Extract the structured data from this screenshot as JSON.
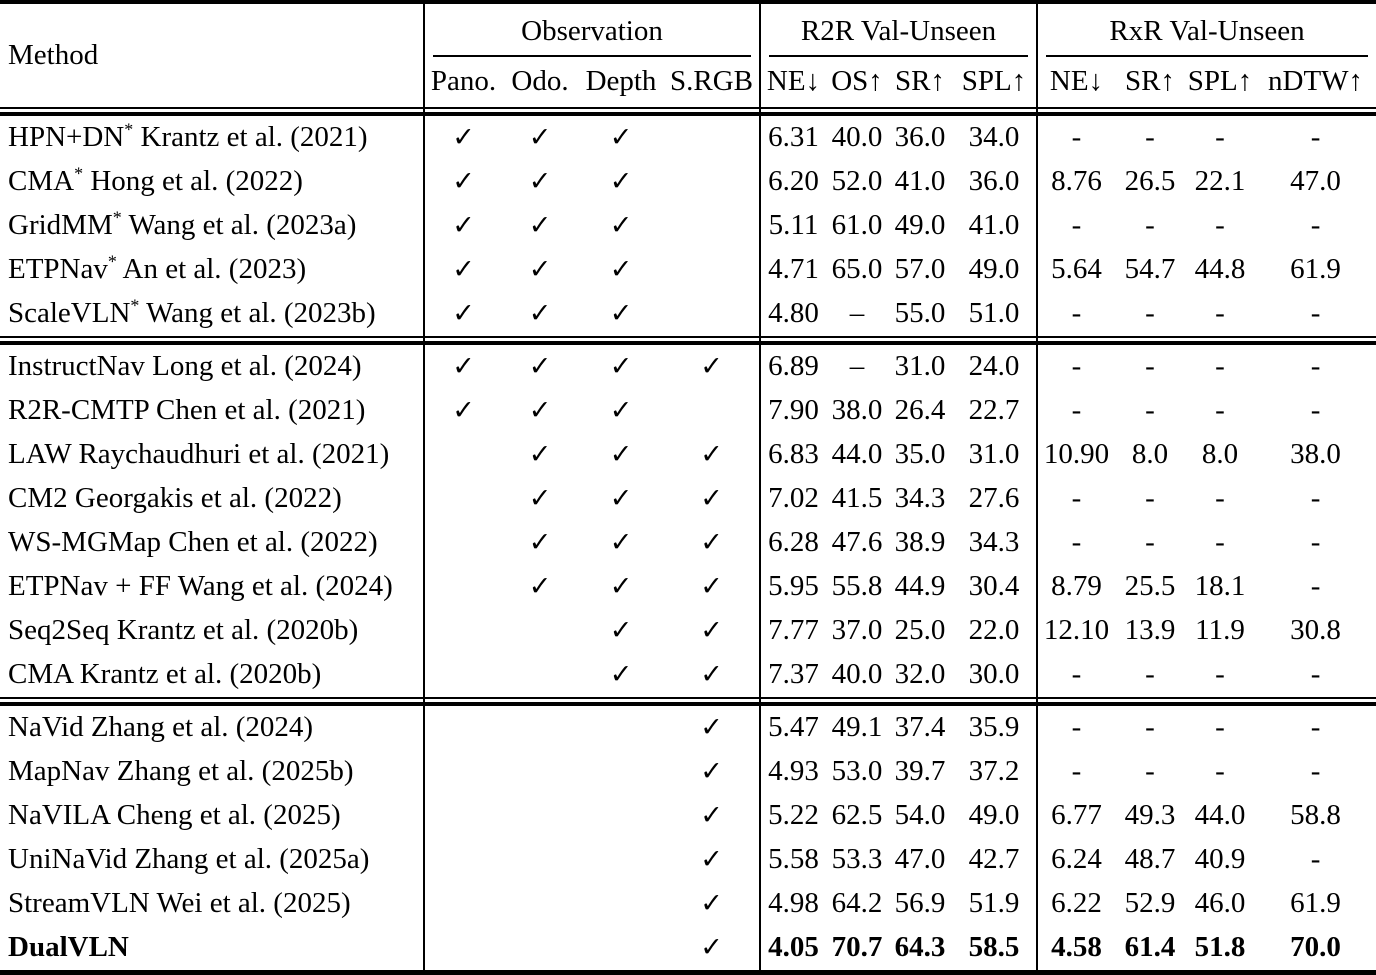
{
  "table": {
    "method_header": "Method",
    "star_glyph": "*",
    "check_glyph": "✓",
    "groups": [
      {
        "label": "Observation",
        "cols": [
          "Pano.",
          "Odo.",
          "Depth",
          "S.RGB"
        ]
      },
      {
        "label": "R2R Val-Unseen",
        "cols": [
          "NE↓",
          "OS↑",
          "SR↑",
          "SPL↑"
        ]
      },
      {
        "label": "RxR Val-Unseen",
        "cols": [
          "NE↓",
          "SR↑",
          "SPL↑",
          "nDTW↑"
        ]
      }
    ],
    "row_groups": [
      {
        "rows": [
          {
            "name": "HPN+DN",
            "star": true,
            "cite": "Krantz et al. (2021)",
            "obs": [
              1,
              1,
              1,
              0
            ],
            "r2r": [
              "6.31",
              "40.0",
              "36.0",
              "34.0"
            ],
            "rxr": [
              "-",
              "-",
              "-",
              "-"
            ],
            "bold": false
          },
          {
            "name": "CMA",
            "star": true,
            "cite": "Hong et al. (2022)",
            "obs": [
              1,
              1,
              1,
              0
            ],
            "r2r": [
              "6.20",
              "52.0",
              "41.0",
              "36.0"
            ],
            "rxr": [
              "8.76",
              "26.5",
              "22.1",
              "47.0"
            ],
            "bold": false
          },
          {
            "name": "GridMM",
            "star": true,
            "cite": "Wang et al. (2023a)",
            "obs": [
              1,
              1,
              1,
              0
            ],
            "r2r": [
              "5.11",
              "61.0",
              "49.0",
              "41.0"
            ],
            "rxr": [
              "-",
              "-",
              "-",
              "-"
            ],
            "bold": false
          },
          {
            "name": "ETPNav",
            "star": true,
            "cite": "An et al. (2023)",
            "obs": [
              1,
              1,
              1,
              0
            ],
            "r2r": [
              "4.71",
              "65.0",
              "57.0",
              "49.0"
            ],
            "rxr": [
              "5.64",
              "54.7",
              "44.8",
              "61.9"
            ],
            "bold": false
          },
          {
            "name": "ScaleVLN",
            "star": true,
            "cite": "Wang et al. (2023b)",
            "obs": [
              1,
              1,
              1,
              0
            ],
            "r2r": [
              "4.80",
              "–",
              "55.0",
              "51.0"
            ],
            "rxr": [
              "-",
              "-",
              "-",
              "-"
            ],
            "bold": false
          }
        ]
      },
      {
        "rows": [
          {
            "name": "InstructNav",
            "star": false,
            "cite": "Long et al. (2024)",
            "obs": [
              1,
              1,
              1,
              1
            ],
            "r2r": [
              "6.89",
              "–",
              "31.0",
              "24.0"
            ],
            "rxr": [
              "-",
              "-",
              "-",
              "-"
            ],
            "bold": false
          },
          {
            "name": "R2R-CMTP",
            "star": false,
            "cite": "Chen et al. (2021)",
            "obs": [
              1,
              1,
              1,
              0
            ],
            "r2r": [
              "7.90",
              "38.0",
              "26.4",
              "22.7"
            ],
            "rxr": [
              "-",
              "-",
              "-",
              "-"
            ],
            "bold": false
          },
          {
            "name": "LAW",
            "star": false,
            "cite": "Raychaudhuri et al. (2021)",
            "obs": [
              0,
              1,
              1,
              1
            ],
            "r2r": [
              "6.83",
              "44.0",
              "35.0",
              "31.0"
            ],
            "rxr": [
              "10.90",
              "8.0",
              "8.0",
              "38.0"
            ],
            "bold": false
          },
          {
            "name": "CM2",
            "star": false,
            "cite": "Georgakis et al. (2022)",
            "obs": [
              0,
              1,
              1,
              1
            ],
            "r2r": [
              "7.02",
              "41.5",
              "34.3",
              "27.6"
            ],
            "rxr": [
              "-",
              "-",
              "-",
              "-"
            ],
            "bold": false
          },
          {
            "name": "WS-MGMap",
            "star": false,
            "cite": "Chen et al. (2022)",
            "obs": [
              0,
              1,
              1,
              1
            ],
            "r2r": [
              "6.28",
              "47.6",
              "38.9",
              "34.3"
            ],
            "rxr": [
              "-",
              "-",
              "-",
              "-"
            ],
            "bold": false
          },
          {
            "name": "ETPNav + FF",
            "star": false,
            "cite": "Wang et al. (2024)",
            "obs": [
              0,
              1,
              1,
              1
            ],
            "r2r": [
              "5.95",
              "55.8",
              "44.9",
              "30.4"
            ],
            "rxr": [
              "8.79",
              "25.5",
              "18.1",
              "-"
            ],
            "bold": false
          },
          {
            "name": "Seq2Seq",
            "star": false,
            "cite": "Krantz et al. (2020b)",
            "obs": [
              0,
              0,
              1,
              1
            ],
            "r2r": [
              "7.77",
              "37.0",
              "25.0",
              "22.0"
            ],
            "rxr": [
              "12.10",
              "13.9",
              "11.9",
              "30.8"
            ],
            "bold": false
          },
          {
            "name": "CMA",
            "star": false,
            "cite": "Krantz et al. (2020b)",
            "obs": [
              0,
              0,
              1,
              1
            ],
            "r2r": [
              "7.37",
              "40.0",
              "32.0",
              "30.0"
            ],
            "rxr": [
              "-",
              "-",
              "-",
              "-"
            ],
            "bold": false
          }
        ]
      },
      {
        "rows": [
          {
            "name": "NaVid",
            "star": false,
            "cite": "Zhang et al. (2024)",
            "obs": [
              0,
              0,
              0,
              1
            ],
            "r2r": [
              "5.47",
              "49.1",
              "37.4",
              "35.9"
            ],
            "rxr": [
              "-",
              "-",
              "-",
              "-"
            ],
            "bold": false
          },
          {
            "name": "MapNav",
            "star": false,
            "cite": "Zhang et al. (2025b)",
            "obs": [
              0,
              0,
              0,
              1
            ],
            "r2r": [
              "4.93",
              "53.0",
              "39.7",
              "37.2"
            ],
            "rxr": [
              "-",
              "-",
              "-",
              "-"
            ],
            "bold": false
          },
          {
            "name": "NaVILA",
            "star": false,
            "cite": "Cheng et al. (2025)",
            "obs": [
              0,
              0,
              0,
              1
            ],
            "r2r": [
              "5.22",
              "62.5",
              "54.0",
              "49.0"
            ],
            "rxr": [
              "6.77",
              "49.3",
              "44.0",
              "58.8"
            ],
            "bold": false
          },
          {
            "name": "UniNaVid",
            "star": false,
            "cite": "Zhang et al. (2025a)",
            "obs": [
              0,
              0,
              0,
              1
            ],
            "r2r": [
              "5.58",
              "53.3",
              "47.0",
              "42.7"
            ],
            "rxr": [
              "6.24",
              "48.7",
              "40.9",
              "-"
            ],
            "bold": false
          },
          {
            "name": "StreamVLN",
            "star": false,
            "cite": "Wei et al. (2025)",
            "obs": [
              0,
              0,
              0,
              1
            ],
            "r2r": [
              "4.98",
              "64.2",
              "56.9",
              "51.9"
            ],
            "rxr": [
              "6.22",
              "52.9",
              "46.0",
              "61.9"
            ],
            "bold": false
          },
          {
            "name": "DualVLN",
            "star": false,
            "cite": "",
            "obs": [
              0,
              0,
              0,
              1
            ],
            "r2r": [
              "4.05",
              "70.7",
              "64.3",
              "58.5"
            ],
            "rxr": [
              "4.58",
              "61.4",
              "51.8",
              "70.0"
            ],
            "bold": true
          }
        ]
      }
    ]
  }
}
